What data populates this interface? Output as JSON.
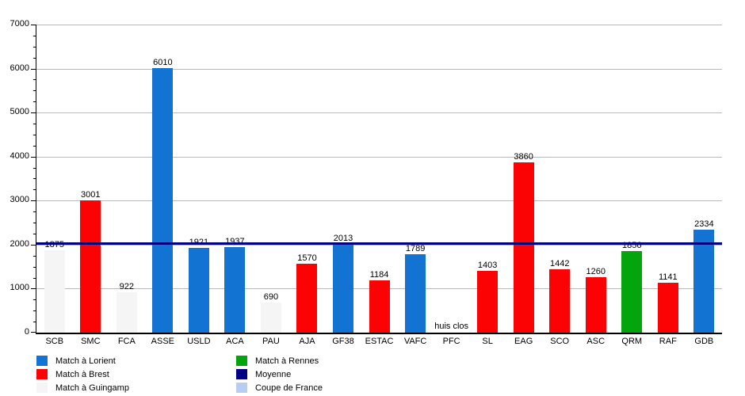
{
  "chart_data": {
    "type": "bar",
    "title": "",
    "xlabel": "",
    "ylabel": "",
    "ylim": [
      0,
      7000
    ],
    "y_major_step": 1000,
    "y_minor_step": 250,
    "grid": true,
    "legend_position": "bottom",
    "categories": [
      "SCB",
      "SMC",
      "FCA",
      "ASSE",
      "USLD",
      "ACA",
      "PAU",
      "AJA",
      "GF38",
      "ESTAC",
      "VAFC",
      "PFC",
      "SL",
      "EAG",
      "SCO",
      "ASC",
      "QRM",
      "RAF",
      "GDB"
    ],
    "values": [
      1875,
      3001,
      922,
      6010,
      1921,
      1937,
      690,
      1570,
      2013,
      1184,
      1789,
      null,
      1403,
      3860,
      1442,
      1260,
      1856,
      1141,
      2334
    ],
    "bar_color_keys": [
      "guingamp",
      "brest",
      "guingamp",
      "lorient",
      "lorient",
      "lorient",
      "guingamp",
      "brest",
      "lorient",
      "brest",
      "lorient",
      "none",
      "brest",
      "brest",
      "brest",
      "brest",
      "rennes",
      "brest",
      "lorient"
    ],
    "annotations": [
      {
        "category": "PFC",
        "index": 11,
        "text": "huis clos"
      }
    ],
    "average_line": {
      "label": "Moyenne",
      "value": 2012
    },
    "colors": {
      "lorient": "#1273d2",
      "brest": "#fb0205",
      "guingamp": "#f5f5f5",
      "rennes": "#03a40c",
      "moyenne": "#000083",
      "coupe": "#b7cdf1",
      "gridline": "#b9b9b9",
      "axis": "#000000"
    },
    "legend": [
      {
        "label": "Match à Lorient",
        "color_key": "lorient"
      },
      {
        "label": "Match à Brest",
        "color_key": "brest"
      },
      {
        "label": "Match à Guingamp",
        "color_key": "guingamp"
      },
      {
        "label": "Match à Rennes",
        "color_key": "rennes"
      },
      {
        "label": "Moyenne",
        "color_key": "moyenne"
      },
      {
        "label": "Coupe de France",
        "color_key": "coupe"
      }
    ]
  }
}
